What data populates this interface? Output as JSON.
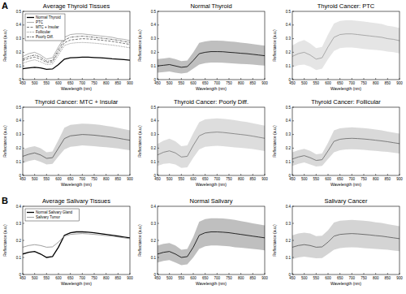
{
  "chart_data": [
    {
      "type": "line",
      "title": "Average Thyroid Tissues",
      "annotations": [
        "A"
      ],
      "x_label": "Wavelength (nm)",
      "y_label": "Reflectance (a.u.)",
      "x": [
        450,
        475,
        500,
        525,
        550,
        575,
        600,
        625,
        650,
        675,
        700,
        725,
        750,
        775,
        800,
        825,
        850,
        875,
        900
      ],
      "xlim": [
        450,
        900
      ],
      "xticks": [
        450,
        500,
        550,
        600,
        650,
        700,
        750,
        800,
        850,
        900
      ],
      "ylim": [
        0,
        0.5
      ],
      "yticks": [
        0,
        0.1,
        0.2,
        0.3,
        0.4,
        0.5
      ],
      "legend": "upper left",
      "series": [
        {
          "name": "Normal Thyroid",
          "color": "#000000",
          "line_style": "solid",
          "values": [
            0.08,
            0.085,
            0.09,
            0.085,
            0.075,
            0.078,
            0.11,
            0.15,
            0.16,
            0.162,
            0.165,
            0.164,
            0.162,
            0.16,
            0.157,
            0.153,
            0.15,
            0.146,
            0.142
          ]
        },
        {
          "name": "PTC",
          "color": "#999999",
          "line_style": "solid",
          "values": [
            0.17,
            0.19,
            0.2,
            0.18,
            0.15,
            0.16,
            0.24,
            0.31,
            0.33,
            0.335,
            0.335,
            0.33,
            0.325,
            0.32,
            0.315,
            0.31,
            0.3,
            0.295,
            0.285
          ]
        },
        {
          "name": "MTC + Insular",
          "color": "#555555",
          "line_style": "dashed",
          "values": [
            0.14,
            0.155,
            0.165,
            0.15,
            0.125,
            0.13,
            0.2,
            0.27,
            0.29,
            0.295,
            0.3,
            0.298,
            0.295,
            0.29,
            0.285,
            0.28,
            0.273,
            0.265,
            0.258
          ]
        },
        {
          "name": "Follicular",
          "color": "#777777",
          "line_style": "dotted",
          "values": [
            0.12,
            0.135,
            0.145,
            0.13,
            0.11,
            0.115,
            0.18,
            0.25,
            0.265,
            0.27,
            0.272,
            0.27,
            0.267,
            0.263,
            0.258,
            0.253,
            0.247,
            0.24,
            0.233
          ]
        },
        {
          "name": "Poorly Diff.",
          "color": "#444444",
          "line_style": "dashdot",
          "values": [
            0.15,
            0.17,
            0.18,
            0.165,
            0.135,
            0.14,
            0.22,
            0.29,
            0.31,
            0.315,
            0.318,
            0.315,
            0.31,
            0.305,
            0.3,
            0.295,
            0.288,
            0.28,
            0.272
          ]
        }
      ]
    },
    {
      "type": "line",
      "title": "Normal Thyroid",
      "x_label": "Wavelength (nm)",
      "y_label": "Reflectance (a.u.)",
      "x": [
        450,
        475,
        500,
        525,
        550,
        575,
        600,
        625,
        650,
        675,
        700,
        725,
        750,
        775,
        800,
        825,
        850,
        875,
        900
      ],
      "xlim": [
        450,
        900
      ],
      "xticks": [
        450,
        500,
        550,
        600,
        650,
        700,
        750,
        800,
        850,
        900
      ],
      "ylim": [
        0,
        0.5
      ],
      "yticks": [
        0,
        0.1,
        0.2,
        0.3,
        0.4,
        0.5
      ],
      "series": [
        {
          "color": "#000000",
          "values": [
            0.1,
            0.105,
            0.11,
            0.1,
            0.09,
            0.095,
            0.14,
            0.19,
            0.2,
            0.205,
            0.205,
            0.204,
            0.2,
            0.197,
            0.193,
            0.19,
            0.185,
            0.18,
            0.175
          ],
          "error": [
            0.05,
            0.05,
            0.05,
            0.05,
            0.045,
            0.045,
            0.06,
            0.08,
            0.08,
            0.08,
            0.08,
            0.08,
            0.08,
            0.08,
            0.078,
            0.077,
            0.075,
            0.074,
            0.073
          ]
        }
      ]
    },
    {
      "type": "line",
      "title": "Thyroid Cancer: PTC",
      "x_label": "Wavelength (nm)",
      "y_label": "Reflectance (a.u.)",
      "x": [
        450,
        475,
        500,
        525,
        550,
        575,
        600,
        625,
        650,
        675,
        700,
        725,
        750,
        775,
        800,
        825,
        850,
        875,
        900
      ],
      "xlim": [
        450,
        900
      ],
      "xticks": [
        450,
        500,
        550,
        600,
        650,
        700,
        750,
        800,
        850,
        900
      ],
      "ylim": [
        0,
        0.5
      ],
      "yticks": [
        0,
        0.1,
        0.2,
        0.3,
        0.4,
        0.5
      ],
      "series": [
        {
          "color": "#999999",
          "values": [
            0.17,
            0.19,
            0.2,
            0.18,
            0.15,
            0.16,
            0.24,
            0.31,
            0.33,
            0.335,
            0.335,
            0.33,
            0.325,
            0.32,
            0.315,
            0.31,
            0.3,
            0.295,
            0.285
          ],
          "error": [
            0.08,
            0.085,
            0.09,
            0.085,
            0.08,
            0.08,
            0.09,
            0.1,
            0.1,
            0.1,
            0.1,
            0.1,
            0.1,
            0.1,
            0.098,
            0.097,
            0.095,
            0.094,
            0.093
          ]
        }
      ]
    },
    {
      "type": "line",
      "title": "Thyroid Cancer: MTC + Insular",
      "x_label": "Wavelength (nm)",
      "y_label": "Reflectance (a.u.)",
      "x": [
        450,
        475,
        500,
        525,
        550,
        575,
        600,
        625,
        650,
        675,
        700,
        725,
        750,
        775,
        800,
        825,
        850,
        875,
        900
      ],
      "xlim": [
        450,
        900
      ],
      "xticks": [
        450,
        500,
        550,
        600,
        650,
        700,
        750,
        800,
        850,
        900
      ],
      "ylim": [
        0,
        0.5
      ],
      "yticks": [
        0,
        0.1,
        0.2,
        0.3,
        0.4,
        0.5
      ],
      "series": [
        {
          "color": "#555555",
          "values": [
            0.14,
            0.155,
            0.165,
            0.15,
            0.125,
            0.13,
            0.2,
            0.27,
            0.29,
            0.295,
            0.3,
            0.298,
            0.295,
            0.29,
            0.285,
            0.28,
            0.273,
            0.265,
            0.258
          ],
          "error": [
            0.05,
            0.05,
            0.05,
            0.05,
            0.045,
            0.045,
            0.06,
            0.08,
            0.08,
            0.08,
            0.08,
            0.08,
            0.08,
            0.08,
            0.078,
            0.077,
            0.075,
            0.074,
            0.073
          ]
        }
      ]
    },
    {
      "type": "line",
      "title": "Thyroid Cancer: Poorly Diff.",
      "x_label": "Wavelength (nm)",
      "y_label": "Reflectance (a.u.)",
      "x": [
        450,
        475,
        500,
        525,
        550,
        575,
        600,
        625,
        650,
        675,
        700,
        725,
        750,
        775,
        800,
        825,
        850,
        875,
        900
      ],
      "xlim": [
        450,
        900
      ],
      "xticks": [
        450,
        500,
        550,
        600,
        650,
        700,
        750,
        800,
        850,
        900
      ],
      "ylim": [
        0,
        0.5
      ],
      "yticks": [
        0,
        0.1,
        0.2,
        0.3,
        0.4,
        0.5
      ],
      "series": [
        {
          "color": "#777777",
          "values": [
            0.15,
            0.17,
            0.18,
            0.165,
            0.135,
            0.14,
            0.22,
            0.29,
            0.31,
            0.315,
            0.318,
            0.315,
            0.31,
            0.305,
            0.3,
            0.295,
            0.288,
            0.28,
            0.272
          ],
          "error": [
            0.08,
            0.085,
            0.09,
            0.085,
            0.08,
            0.08,
            0.09,
            0.1,
            0.1,
            0.1,
            0.1,
            0.1,
            0.1,
            0.1,
            0.098,
            0.097,
            0.095,
            0.094,
            0.093
          ]
        }
      ]
    },
    {
      "type": "line",
      "title": "Thyroid Cancer: Follicular",
      "x_label": "Wavelength (nm)",
      "y_label": "Reflectance (a.u.)",
      "x": [
        450,
        475,
        500,
        525,
        550,
        575,
        600,
        625,
        650,
        675,
        700,
        725,
        750,
        775,
        800,
        825,
        850,
        875,
        900
      ],
      "xlim": [
        450,
        900
      ],
      "xticks": [
        450,
        500,
        550,
        600,
        650,
        700,
        750,
        800,
        850,
        900
      ],
      "ylim": [
        0,
        0.5
      ],
      "yticks": [
        0,
        0.1,
        0.2,
        0.3,
        0.4,
        0.5
      ],
      "series": [
        {
          "color": "#666666",
          "values": [
            0.12,
            0.135,
            0.145,
            0.13,
            0.11,
            0.115,
            0.18,
            0.25,
            0.265,
            0.27,
            0.272,
            0.27,
            0.267,
            0.263,
            0.258,
            0.253,
            0.247,
            0.24,
            0.233
          ],
          "error": [
            0.05,
            0.05,
            0.05,
            0.05,
            0.045,
            0.045,
            0.06,
            0.08,
            0.08,
            0.08,
            0.08,
            0.08,
            0.08,
            0.08,
            0.078,
            0.077,
            0.075,
            0.074,
            0.073
          ]
        }
      ]
    },
    {
      "type": "line",
      "title": "Average Salivary Tissues",
      "annotations": [
        "B"
      ],
      "x_label": "Wavelength (nm)",
      "y_label": "Reflectance (a.u.)",
      "x": [
        450,
        475,
        500,
        525,
        550,
        575,
        600,
        625,
        650,
        675,
        700,
        725,
        750,
        775,
        800,
        825,
        850,
        875,
        900
      ],
      "xlim": [
        450,
        900
      ],
      "xticks": [
        450,
        500,
        550,
        600,
        650,
        700,
        750,
        800,
        850,
        900
      ],
      "ylim": [
        0,
        0.4
      ],
      "yticks": [
        0,
        0.1,
        0.2,
        0.3,
        0.4
      ],
      "legend": "upper left",
      "series": [
        {
          "name": "Normal Salivary Gland",
          "color": "#000000",
          "line_style": "solid",
          "values": [
            0.12,
            0.13,
            0.135,
            0.12,
            0.1,
            0.105,
            0.16,
            0.23,
            0.245,
            0.25,
            0.25,
            0.248,
            0.245,
            0.24,
            0.235,
            0.23,
            0.225,
            0.22,
            0.215
          ]
        },
        {
          "name": "Salivary Tumor",
          "color": "#888888",
          "line_style": "solid",
          "values": [
            0.16,
            0.17,
            0.175,
            0.17,
            0.16,
            0.162,
            0.19,
            0.225,
            0.235,
            0.238,
            0.24,
            0.238,
            0.235,
            0.232,
            0.228,
            0.225,
            0.22,
            0.215,
            0.21
          ]
        }
      ]
    },
    {
      "type": "line",
      "title": "Normal Salivary",
      "x_label": "Wavelength (nm)",
      "y_label": "Reflectance (a.u.)",
      "x": [
        450,
        475,
        500,
        525,
        550,
        575,
        600,
        625,
        650,
        675,
        700,
        725,
        750,
        775,
        800,
        825,
        850,
        875,
        900
      ],
      "xlim": [
        450,
        900
      ],
      "xticks": [
        450,
        500,
        550,
        600,
        650,
        700,
        750,
        800,
        850,
        900
      ],
      "ylim": [
        0,
        0.4
      ],
      "yticks": [
        0,
        0.1,
        0.2,
        0.3,
        0.4
      ],
      "series": [
        {
          "color": "#000000",
          "values": [
            0.12,
            0.13,
            0.135,
            0.12,
            0.1,
            0.105,
            0.16,
            0.23,
            0.245,
            0.25,
            0.25,
            0.248,
            0.245,
            0.24,
            0.235,
            0.23,
            0.225,
            0.22,
            0.215
          ],
          "error": [
            0.05,
            0.05,
            0.05,
            0.05,
            0.045,
            0.045,
            0.06,
            0.08,
            0.08,
            0.08,
            0.08,
            0.08,
            0.08,
            0.08,
            0.078,
            0.077,
            0.075,
            0.074,
            0.073
          ]
        }
      ]
    },
    {
      "type": "line",
      "title": "Salivary Cancer",
      "x_label": "Wavelength (nm)",
      "y_label": "Reflectance (a.u.)",
      "x": [
        450,
        475,
        500,
        525,
        550,
        575,
        600,
        625,
        650,
        675,
        700,
        725,
        750,
        775,
        800,
        825,
        850,
        875,
        900
      ],
      "xlim": [
        450,
        900
      ],
      "xticks": [
        450,
        500,
        550,
        600,
        650,
        700,
        750,
        800,
        850,
        900
      ],
      "ylim": [
        0,
        0.4
      ],
      "yticks": [
        0,
        0.1,
        0.2,
        0.3,
        0.4
      ],
      "series": [
        {
          "color": "#555555",
          "values": [
            0.16,
            0.17,
            0.175,
            0.17,
            0.16,
            0.162,
            0.19,
            0.225,
            0.235,
            0.238,
            0.24,
            0.238,
            0.235,
            0.232,
            0.228,
            0.225,
            0.22,
            0.215,
            0.21
          ],
          "error": [
            0.07,
            0.07,
            0.07,
            0.07,
            0.065,
            0.065,
            0.07,
            0.08,
            0.08,
            0.08,
            0.08,
            0.08,
            0.08,
            0.08,
            0.078,
            0.077,
            0.075,
            0.074,
            0.073
          ]
        }
      ]
    }
  ]
}
